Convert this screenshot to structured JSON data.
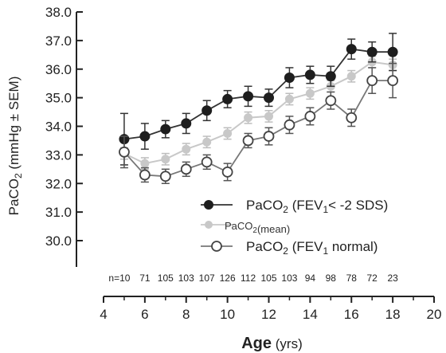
{
  "chart_data": {
    "type": "line",
    "title": "",
    "xlabel_main": "Age",
    "xlabel_unit": "(yrs)",
    "ylabel_prefix": "PaCO",
    "ylabel_sub": "2",
    "ylabel_suffix": " (mmHg ± SEM)",
    "xlim": [
      4,
      20
    ],
    "ylim": [
      29.0,
      38.0
    ],
    "x_ticks": [
      4,
      6,
      8,
      10,
      12,
      14,
      16,
      18,
      20
    ],
    "y_ticks": [
      "30.0",
      "31.0",
      "32.0",
      "33.0",
      "34.0",
      "35.0",
      "36.0",
      "37.0",
      "38.0"
    ],
    "x": [
      5,
      6,
      7,
      8,
      9,
      10,
      11,
      12,
      13,
      14,
      15,
      16,
      17,
      18
    ],
    "n_prefix": "n=",
    "n_values": [
      "10",
      "71",
      "105",
      "103",
      "107",
      "126",
      "112",
      "105",
      "103",
      "94",
      "98",
      "78",
      "72",
      "23"
    ],
    "series": [
      {
        "name_prefix": "PaCO",
        "name_sub": "2",
        "name_mid": " (FEV",
        "name_sub2": "1",
        "name_suffix": "< -2 SDS)",
        "color": "#222222",
        "marker": "filled",
        "values": [
          33.55,
          33.65,
          33.9,
          34.1,
          34.55,
          34.95,
          35.05,
          35.0,
          35.7,
          35.8,
          35.75,
          36.7,
          36.6,
          36.6
        ],
        "sem": [
          0.9,
          0.45,
          0.3,
          0.35,
          0.35,
          0.3,
          0.35,
          0.3,
          0.35,
          0.3,
          0.35,
          0.35,
          0.35,
          0.65
        ]
      },
      {
        "name_prefix": "PaCO",
        "name_sub": "2",
        "name_mid": "",
        "name_sub2": "",
        "name_suffix": "(mean)",
        "color": "#bdbdbd",
        "marker": "filled",
        "values": [
          33.05,
          32.7,
          32.85,
          33.2,
          33.45,
          33.75,
          34.3,
          34.35,
          34.95,
          35.15,
          35.4,
          35.75,
          36.25,
          36.15
        ],
        "sem": [
          0.2,
          0.2,
          0.2,
          0.2,
          0.2,
          0.2,
          0.2,
          0.2,
          0.2,
          0.2,
          0.2,
          0.2,
          0.2,
          0.2
        ]
      },
      {
        "name_prefix": "PaCO",
        "name_sub": "2",
        "name_mid": " (FEV",
        "name_sub2": "1",
        "name_suffix": " normal)",
        "color": "#555555",
        "marker": "open",
        "values": [
          33.1,
          32.3,
          32.25,
          32.5,
          32.75,
          32.4,
          33.5,
          33.65,
          34.05,
          34.35,
          34.9,
          34.3,
          35.6,
          35.6
        ],
        "sem": [
          0.55,
          0.25,
          0.25,
          0.25,
          0.25,
          0.3,
          0.25,
          0.3,
          0.3,
          0.3,
          0.3,
          0.3,
          0.45,
          0.6
        ]
      }
    ],
    "legend_position": "bottom-right",
    "grid": false
  }
}
